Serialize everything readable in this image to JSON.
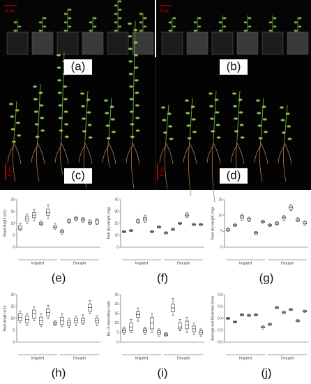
{
  "photos": [
    {
      "label": "(a)",
      "scale": "5 cm"
    },
    {
      "label": "(b)",
      "scale": "5 cm"
    },
    {
      "label": "(c)",
      "scale": "5 cm"
    },
    {
      "label": "(d)",
      "scale": "5 cm"
    }
  ],
  "chart_data": [
    {
      "type": "box",
      "label": "(e)",
      "ylabel": "Shoot length (cm)",
      "groups": [
        "Irrigated",
        "Drought"
      ],
      "ylim": [
        0,
        20
      ],
      "yticks": [
        0,
        5,
        10,
        15,
        20
      ],
      "boxes": [
        [
          7,
          7.5,
          8,
          9,
          10
        ],
        [
          10,
          11,
          12,
          13,
          14
        ],
        [
          11,
          12.5,
          13.5,
          14.5,
          16
        ],
        [
          9,
          9.5,
          10,
          10.5,
          11
        ],
        [
          12,
          13.5,
          14.5,
          16,
          18
        ],
        [
          7.5,
          8,
          8.5,
          9,
          10
        ],
        [
          5.5,
          6,
          6.5,
          7,
          7.5
        ],
        [
          10,
          10.5,
          11,
          11.5,
          12
        ],
        [
          11,
          11.5,
          12,
          12.5,
          13
        ],
        [
          10.5,
          11,
          11.5,
          12,
          12.5
        ],
        [
          9.5,
          10,
          10.5,
          11,
          11.5
        ],
        [
          9.5,
          10,
          11,
          11.5,
          12
        ]
      ]
    },
    {
      "type": "box",
      "label": "(f)",
      "ylabel": "Total dry weight (mg)",
      "groups": [
        "Irrigated",
        "Drought"
      ],
      "ylim": [
        0,
        40
      ],
      "yticks": [
        0,
        10,
        20,
        30,
        40
      ],
      "boxes": [
        [
          12,
          12.5,
          13,
          13.5,
          14
        ],
        [
          13,
          13.5,
          14,
          14.5,
          15
        ],
        [
          20,
          21,
          22,
          23,
          24
        ],
        [
          21,
          22,
          23.5,
          25,
          27
        ],
        [
          12,
          12.5,
          13,
          13.5,
          14
        ],
        [
          16,
          16.5,
          17,
          17.5,
          18
        ],
        [
          11,
          11.5,
          12,
          12.5,
          13
        ],
        [
          14,
          14.5,
          15,
          15.5,
          16
        ],
        [
          19,
          19.5,
          20,
          20.5,
          21
        ],
        [
          25,
          26,
          27,
          28,
          29
        ],
        [
          18,
          18.5,
          19,
          19.5,
          20
        ],
        [
          18,
          18.5,
          19,
          19.5,
          20
        ]
      ]
    },
    {
      "type": "box",
      "label": "(g)",
      "ylabel": "Root dry weight (mg)",
      "groups": [
        "Irrigated",
        "Drought"
      ],
      "ylim": [
        0,
        15
      ],
      "yticks": [
        0,
        5,
        10,
        15
      ],
      "boxes": [
        [
          5,
          5.2,
          5.5,
          5.8,
          6
        ],
        [
          6.5,
          6.8,
          7,
          7.2,
          7.5
        ],
        [
          8.5,
          9,
          9.5,
          10,
          10.5
        ],
        [
          8,
          8.5,
          9,
          9.2,
          9.5
        ],
        [
          4,
          4.2,
          4.5,
          4.8,
          5
        ],
        [
          7.5,
          7.8,
          8,
          8.2,
          8.5
        ],
        [
          6.5,
          6.8,
          7,
          7.2,
          7.5
        ],
        [
          7,
          7.2,
          7.5,
          7.8,
          8
        ],
        [
          8.5,
          9,
          9.3,
          9.6,
          10
        ],
        [
          11.5,
          12,
          12.5,
          13,
          13.5
        ],
        [
          8,
          8.3,
          8.6,
          9,
          9.3
        ],
        [
          7,
          7.3,
          7.6,
          8,
          8.3
        ]
      ]
    },
    {
      "type": "box",
      "label": "(h)",
      "ylabel": "Root length (cm)",
      "groups": [
        "Irrigated",
        "Drought"
      ],
      "ylim": [
        0,
        20
      ],
      "yticks": [
        0,
        5,
        10,
        15,
        20
      ],
      "boxes": [
        [
          8,
          9,
          10.5,
          12,
          13
        ],
        [
          7,
          8,
          9.5,
          11,
          12
        ],
        [
          9,
          10,
          12,
          13.5,
          15
        ],
        [
          6.5,
          7.5,
          9,
          10.5,
          12
        ],
        [
          10,
          11,
          12.5,
          14,
          15.5
        ],
        [
          7,
          7.5,
          8,
          8.5,
          9
        ],
        [
          6.5,
          7.5,
          9,
          10.5,
          12
        ],
        [
          6,
          7,
          8,
          9,
          10
        ],
        [
          7,
          8,
          9,
          10,
          11
        ],
        [
          7.5,
          8,
          9,
          10,
          11.5
        ],
        [
          12,
          13,
          14.5,
          16,
          17.5
        ],
        [
          7,
          8,
          9,
          10,
          11
        ]
      ]
    },
    {
      "type": "box",
      "label": "(i)",
      "ylabel": "No. of secondary roots",
      "groups": [
        "Irrigated",
        "Drought"
      ],
      "ylim": [
        0,
        25
      ],
      "yticks": [
        0,
        5,
        10,
        15,
        20,
        25
      ],
      "boxes": [
        [
          4,
          5,
          6,
          7,
          8
        ],
        [
          5,
          6,
          8,
          10,
          12
        ],
        [
          11,
          13,
          14.5,
          16,
          18
        ],
        [
          4,
          5,
          6,
          7,
          8
        ],
        [
          5,
          7,
          10,
          13,
          15
        ],
        [
          3,
          4,
          5,
          6,
          7
        ],
        [
          3,
          3.5,
          4,
          4.5,
          5
        ],
        [
          14,
          16,
          18,
          20,
          23
        ],
        [
          6,
          7,
          8,
          10,
          12
        ],
        [
          5,
          7,
          9,
          11,
          13
        ],
        [
          4,
          5.5,
          7,
          8.5,
          10
        ],
        [
          3,
          4,
          5,
          6,
          7
        ]
      ]
    },
    {
      "type": "box",
      "label": "(j)",
      "ylabel": "Average root thickness (mm)",
      "groups": [
        "Irrigated",
        "Drought"
      ],
      "ylim": [
        0,
        0.8
      ],
      "yticks": [
        {
          "value": 0,
          "label": "0.0"
        },
        0.2,
        0.4,
        0.6,
        0.8
      ],
      "boxes": [
        [
          0.38,
          0.39,
          0.4,
          0.41,
          0.42
        ],
        [
          0.32,
          0.33,
          0.34,
          0.35,
          0.36
        ],
        [
          0.44,
          0.45,
          0.46,
          0.47,
          0.48
        ],
        [
          0.43,
          0.44,
          0.45,
          0.46,
          0.47
        ],
        [
          0.44,
          0.45,
          0.46,
          0.47,
          0.48
        ],
        [
          0.22,
          0.24,
          0.25,
          0.26,
          0.28
        ],
        [
          0.28,
          0.29,
          0.3,
          0.31,
          0.32
        ],
        [
          0.56,
          0.57,
          0.58,
          0.59,
          0.6
        ],
        [
          0.48,
          0.49,
          0.5,
          0.51,
          0.52
        ],
        [
          0.53,
          0.54,
          0.55,
          0.56,
          0.57
        ],
        [
          0.34,
          0.35,
          0.36,
          0.37,
          0.38
        ],
        [
          0.5,
          0.51,
          0.52,
          0.53,
          0.54
        ]
      ]
    }
  ]
}
